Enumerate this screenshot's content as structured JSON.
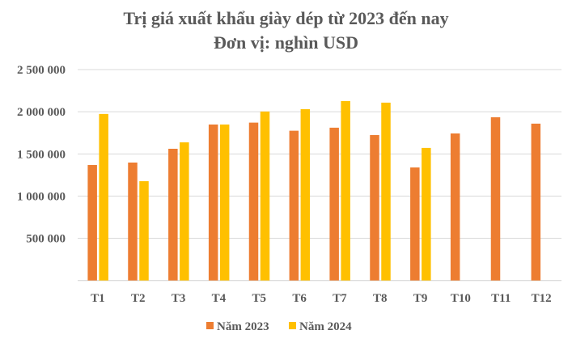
{
  "chart_data": {
    "type": "bar",
    "title": "Trị giá xuất khẩu giày dép từ 2023 đến nay",
    "subtitle": "Đơn vị: nghìn USD",
    "xlabel": "",
    "ylabel": "",
    "categories": [
      "T1",
      "T2",
      "T3",
      "T4",
      "T5",
      "T6",
      "T7",
      "T8",
      "T9",
      "T10",
      "T11",
      "T12"
    ],
    "series": [
      {
        "name": "Năm 2023",
        "color": "#ED7D31",
        "values": [
          1369000,
          1398000,
          1561000,
          1849000,
          1871000,
          1775000,
          1811000,
          1724000,
          1340000,
          1743000,
          1935000,
          1859000
        ]
      },
      {
        "name": "Năm 2024",
        "color": "#FFC000",
        "values": [
          1974000,
          1177000,
          1638000,
          1849000,
          2003000,
          2031000,
          2127000,
          2108000,
          1571000,
          null,
          null,
          null
        ]
      }
    ],
    "ylim": [
      0,
      2500000
    ],
    "yticks": [
      0,
      500000,
      1000000,
      1500000,
      2000000,
      2500000
    ],
    "ytick_labels": [
      "",
      "500 000",
      "1 000 000",
      "1 500 000",
      "2 000 000",
      "2 500 000"
    ],
    "grid": true,
    "legend_position": "bottom"
  }
}
